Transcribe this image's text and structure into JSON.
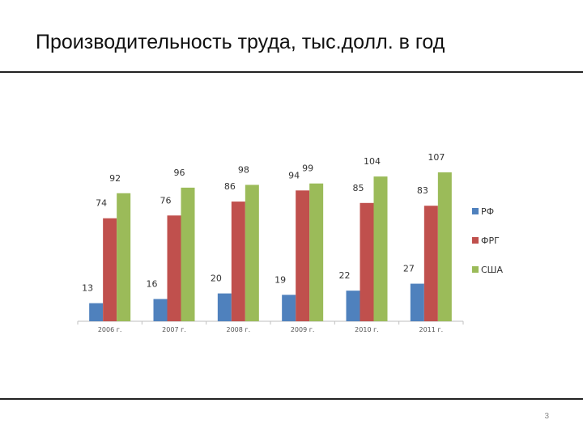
{
  "slide": {
    "title": "Производительность труда, тыс.долл. в год",
    "page_number": "3"
  },
  "chart_data": {
    "type": "bar",
    "categories": [
      "2006 г.",
      "2007 г.",
      "2008 г.",
      "2009 г.",
      "2010 г.",
      "2011 г."
    ],
    "series": [
      {
        "name": "РФ",
        "color": "#4F81BD",
        "values": [
          13,
          16,
          20,
          19,
          22,
          27
        ]
      },
      {
        "name": "ФРГ",
        "color": "#C0504D",
        "values": [
          74,
          76,
          86,
          94,
          85,
          83
        ]
      },
      {
        "name": "США",
        "color": "#9BBB59",
        "values": [
          92,
          96,
          98,
          99,
          104,
          107
        ]
      }
    ],
    "title": "",
    "xlabel": "",
    "ylabel": "",
    "ylim": [
      0,
      125
    ],
    "grid": false,
    "legend": "right",
    "data_labels": true
  }
}
